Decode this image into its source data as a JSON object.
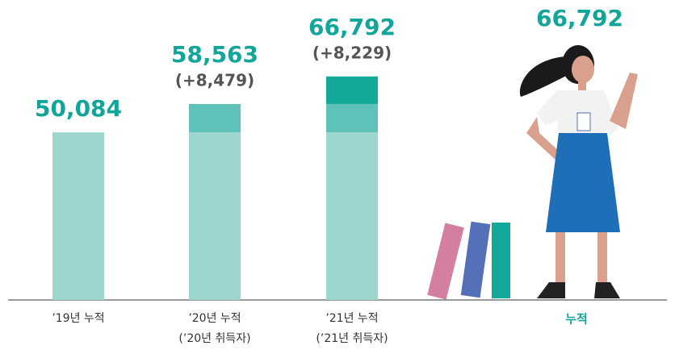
{
  "chart_data": {
    "type": "stacked_bar",
    "categories": [
      "’19년 누적",
      "’20년 누적",
      "’21년 누적"
    ],
    "subcategories": [
      null,
      "(’20년 취득자)",
      "(’21년 취득자)"
    ],
    "series": [
      {
        "color": "#9dd6cf",
        "values": [
          50084,
          50084,
          50084
        ]
      },
      {
        "color": "#5fc2ba",
        "values": [
          null,
          8479,
          8479
        ],
        "value_labels": [
          null,
          "(+8,479)",
          null
        ]
      },
      {
        "color": "#12a99a",
        "values": [
          null,
          null,
          8229
        ],
        "value_labels": [
          null,
          null,
          "(+8,229)"
        ]
      }
    ],
    "totals": {
      "values": [
        50084,
        58563,
        66792
      ],
      "value_labels": [
        "50,084",
        "58,563",
        "66,792"
      ]
    },
    "summary": {
      "value": 66792,
      "value_label": "66,792",
      "label": "누적"
    },
    "ylim": [
      0,
      80000
    ]
  }
}
